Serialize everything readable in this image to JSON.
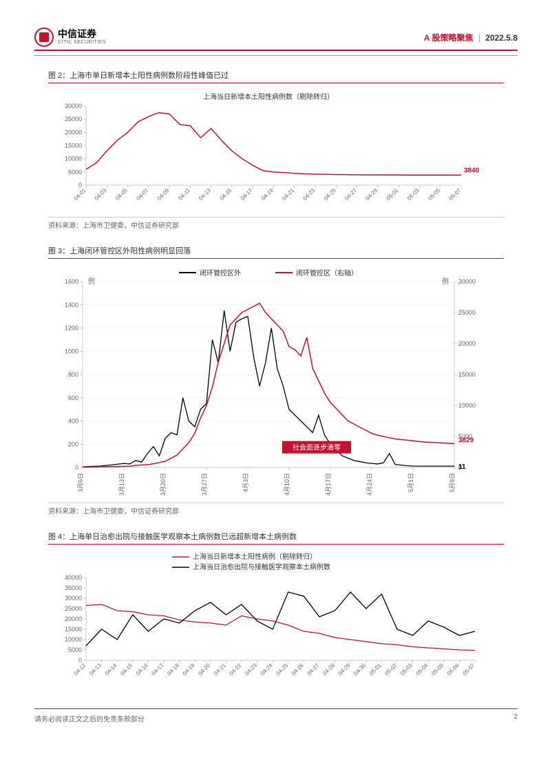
{
  "header": {
    "logo_cn": "中信证券",
    "logo_en": "CITIC SECURITIES",
    "category": "A 股策略聚焦",
    "date": "2022.5.8"
  },
  "fig2": {
    "title": "图 2：上海市单日新增本土阳性病例数阶段性峰值已过",
    "chart_title": "上海当日新增本土阳性病例数（剔除转归）",
    "type": "line",
    "series_color": "#c8102e",
    "background_color": "#ffffff",
    "line_width": 1.5,
    "ylim": [
      0,
      30000
    ],
    "ytick_step": 5000,
    "yticks": [
      "0",
      "5000",
      "10000",
      "15000",
      "20000",
      "25000",
      "30000"
    ],
    "xlabels": [
      "04-01",
      "04-03",
      "04-05",
      "04-07",
      "04-09",
      "04-11",
      "04-13",
      "04-15",
      "04-17",
      "04-19",
      "04-21",
      "04-23",
      "04-25",
      "04-27",
      "04-29",
      "05-01",
      "05-03",
      "05-05",
      "05-07"
    ],
    "values": [
      6000,
      8500,
      13000,
      17000,
      20000,
      24000,
      26000,
      27500,
      27000,
      23000,
      22500,
      18000,
      21500,
      17000,
      13000,
      10000,
      7500,
      5500,
      5000,
      4800,
      4500,
      4300,
      4200,
      4100,
      4050,
      4000,
      3950,
      3920,
      3900,
      3880,
      3870,
      3860,
      3855,
      3850,
      3845,
      3843,
      3840
    ],
    "end_label": "3840",
    "source": "资料来源：上海市卫健委，中信证券研究部"
  },
  "fig3": {
    "title": "图 3：上海闭环管控区外阳性病例明显回落",
    "type": "dual-line",
    "legend": [
      {
        "label": "闭环管控区外",
        "color": "#000000"
      },
      {
        "label": "闭环管控区（右轴）",
        "color": "#c8102e"
      }
    ],
    "y_left_label": "例",
    "y_right_label": "例",
    "y_left_lim": [
      0,
      1600
    ],
    "y_left_step": 200,
    "y_left_ticks": [
      "0",
      "200",
      "400",
      "600",
      "800",
      "1000",
      "1200",
      "1400",
      "1600"
    ],
    "y_right_lim": [
      0,
      30000
    ],
    "y_right_step": 5000,
    "y_right_ticks": [
      "0",
      "5000",
      "10000",
      "15000",
      "20000",
      "25000",
      "30000"
    ],
    "xlabels": [
      "3月6日",
      "3月13日",
      "3月20日",
      "3月27日",
      "4月3日",
      "4月10日",
      "4月17日",
      "4月24日",
      "5月1日",
      "5月8日"
    ],
    "series_black": [
      5,
      8,
      10,
      12,
      18,
      22,
      28,
      35,
      30,
      60,
      45,
      120,
      180,
      100,
      250,
      300,
      280,
      600,
      400,
      350,
      500,
      550,
      1100,
      900,
      1350,
      1000,
      1250,
      1280,
      1300,
      950,
      700,
      900,
      1200,
      850,
      700,
      500,
      450,
      400,
      350,
      300,
      450,
      280,
      200,
      150,
      100,
      80,
      60,
      50,
      40,
      35,
      30,
      40,
      120,
      25,
      20,
      15,
      12,
      11,
      11,
      11,
      11,
      11,
      11,
      11
    ],
    "series_red_right": [
      50,
      80,
      100,
      120,
      130,
      140,
      150,
      180,
      200,
      350,
      400,
      450,
      600,
      800,
      1000,
      1500,
      2000,
      3000,
      4000,
      5500,
      8000,
      10000,
      13000,
      17000,
      20000,
      23000,
      24000,
      25000,
      25500,
      26000,
      26500,
      25000,
      24000,
      23000,
      22000,
      19500,
      19000,
      18000,
      21000,
      16000,
      14000,
      12000,
      10500,
      9500,
      8500,
      7500,
      7000,
      6500,
      6000,
      5500,
      5200,
      5000,
      4800,
      4600,
      4500,
      4400,
      4300,
      4200,
      4100,
      4050,
      4000,
      3950,
      3900,
      3829
    ],
    "annotation": {
      "text": "社会面逐步清零",
      "bg_color": "#c8102e",
      "text_color": "#ffffff"
    },
    "end_label_red": "3829",
    "end_label_black": "11",
    "source": "资料来源：上海市卫健委，中信证券研究部"
  },
  "fig4": {
    "title": "图 4：上海单日治愈出院与接触医学观察本土病例数已远超新增本土病例数",
    "type": "dual-line-single-axis",
    "legend": [
      {
        "label": "上海当日新增本土阳性病例（剔除转归）",
        "color": "#c8102e"
      },
      {
        "label": "上海当日治愈出院与接触医学观察本土病例数",
        "color": "#000000"
      }
    ],
    "ylim": [
      0,
      40000
    ],
    "ytick_step": 5000,
    "yticks": [
      "0",
      "5000",
      "10000",
      "15000",
      "20000",
      "25000",
      "30000",
      "35000",
      "40000"
    ],
    "xlabels": [
      "04-12",
      "04-13",
      "04-14",
      "04-15",
      "04-16",
      "04-17",
      "04-18",
      "04-19",
      "04-20",
      "04-21",
      "04-22",
      "04-23",
      "04-24",
      "04-25",
      "04-26",
      "04-27",
      "04-28",
      "04-29",
      "04-30",
      "05-01",
      "05-02",
      "05-03",
      "05-04",
      "05-05",
      "05-06",
      "05-07"
    ],
    "series_red": [
      26500,
      27000,
      24000,
      23500,
      22000,
      21500,
      19500,
      18500,
      18000,
      17000,
      21500,
      20000,
      19000,
      17000,
      14000,
      13000,
      11000,
      10000,
      9000,
      8000,
      7500,
      6500,
      6000,
      5500,
      5000,
      4800
    ],
    "series_black": [
      7000,
      15000,
      10000,
      22000,
      14000,
      20000,
      18000,
      24000,
      28000,
      22000,
      27000,
      19000,
      15000,
      33000,
      31000,
      21000,
      24000,
      33000,
      25000,
      32000,
      15000,
      12000,
      19000,
      16000,
      12000,
      14000
    ],
    "source": ""
  },
  "footer": {
    "disclaimer": "请务必阅读正文之后的免责条款部分",
    "page_number": "2"
  }
}
